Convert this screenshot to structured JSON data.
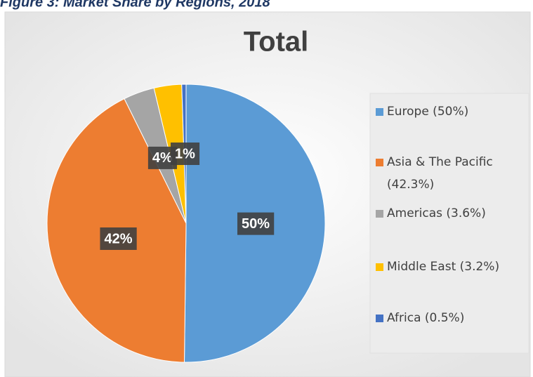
{
  "chart_data": {
    "type": "pie",
    "caption": "Figure 3: Market Share by Regions, 2018",
    "title": "Total",
    "categories": [
      "Europe (50%)",
      "Asia & The Pacific (42.3%)",
      "Americas (3.6%)",
      "Middle East (3.2%)",
      "Africa (0.5%)"
    ],
    "values": [
      50,
      42.3,
      3.6,
      3.2,
      0.5
    ],
    "value_labels": [
      "50%",
      "42%",
      "4%",
      null,
      "1%"
    ],
    "colors": [
      "#5b9bd5",
      "#ed7d31",
      "#a5a5a5",
      "#ffc000",
      "#4472c4"
    ],
    "legend": "right"
  }
}
